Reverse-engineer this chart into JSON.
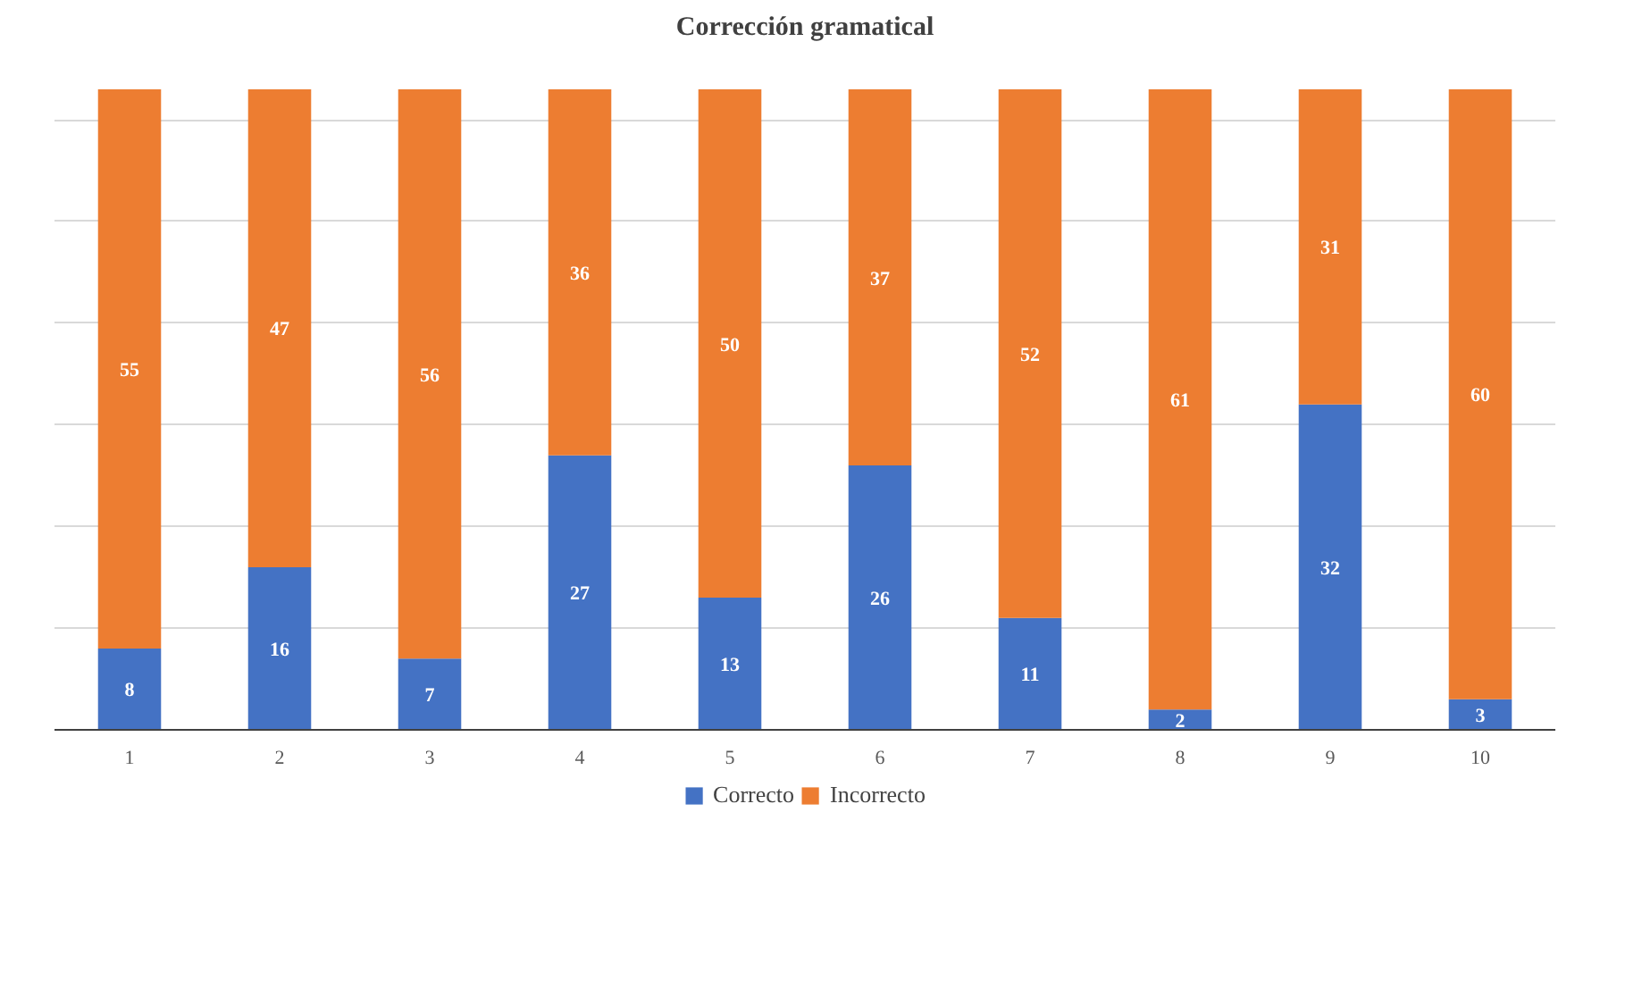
{
  "chart_data": {
    "type": "bar",
    "title": "Corrección gramatical",
    "stacked": true,
    "categories": [
      "1",
      "2",
      "3",
      "4",
      "5",
      "6",
      "7",
      "8",
      "9",
      "10"
    ],
    "series": [
      {
        "name": "Correcto",
        "color": "#4472c4",
        "values": [
          8,
          16,
          7,
          27,
          13,
          26,
          11,
          2,
          32,
          3
        ]
      },
      {
        "name": "Incorrecto",
        "color": "#ed7d31",
        "values": [
          55,
          47,
          56,
          36,
          50,
          37,
          52,
          61,
          31,
          60
        ]
      }
    ],
    "tick_labels": "x",
    "grid": "y",
    "legend": "bottom",
    "data_labels": true
  }
}
